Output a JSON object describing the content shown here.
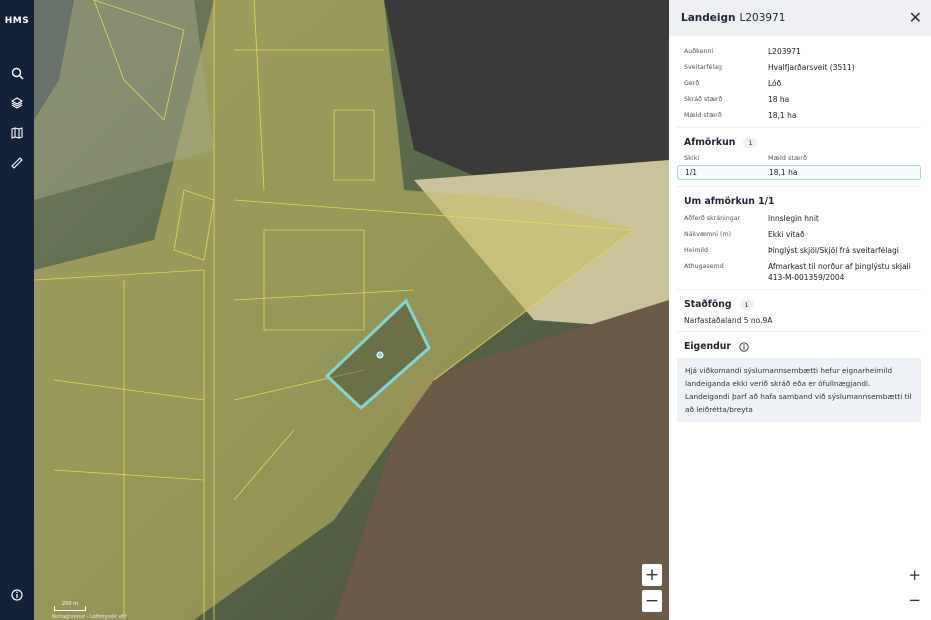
{
  "sidebar": {
    "logo": "HMS",
    "items": [
      {
        "icon": "search-icon"
      },
      {
        "icon": "layers-icon"
      },
      {
        "icon": "map-icon"
      },
      {
        "icon": "ruler-icon"
      }
    ],
    "bottom_icon": "info-icon"
  },
  "map": {
    "scale_label": "200 m",
    "attribution": "Kortagrunnur - Loftmyndir ehf",
    "zoom_in": "+",
    "zoom_out": "−",
    "selected_color": "#7fd6d8",
    "parcel_color": "#e6d45a"
  },
  "panel": {
    "title_prefix": "Landeign",
    "title_id": "L203971",
    "close": "✕",
    "details": [
      {
        "k": "Auðkenni",
        "v": "L203971"
      },
      {
        "k": "Sveitarfélag",
        "v": "Hvalfjarðarsveit (3511)"
      },
      {
        "k": "Gerð",
        "v": "Lóð"
      },
      {
        "k": "Skráð stærð",
        "v": "18 ha"
      },
      {
        "k": "Mæld stærð",
        "v": "18,1 ha"
      }
    ],
    "afmorkun": {
      "title": "Afmörkun",
      "count": "1",
      "col1": "Skiki",
      "col2": "Mæld stærð",
      "rows": [
        {
          "skiki": "1/1",
          "staerd": "18,1 ha"
        }
      ]
    },
    "um": {
      "title": "Um afmörkun 1/1",
      "rows": [
        {
          "k": "Aðferð skráningar",
          "v": "Innslegin hnit"
        },
        {
          "k": "Nákvæmni (m)",
          "v": "Ekki vitað"
        },
        {
          "k": "Heimild",
          "v": "Þinglýst skjöl/Skjöl frá sveitarfélagi"
        },
        {
          "k": "Athugasemd",
          "v": "Afmarkast til norður af þinglýstu skjali 413-M-001359/2004"
        }
      ]
    },
    "stadfong": {
      "title": "Staðföng",
      "count": "1",
      "items": [
        "Narfastaðaland 5 no.9A"
      ]
    },
    "eigendur": {
      "title": "Eigendur",
      "notice": "Hjá viðkomandi sýslumannsembætti hefur eignarheimild landeiganda ekki verið skráð eða er ófullnægjandi. Landeigandi þarf að hafa samband við sýslumannsembætti til að leiðrétta/breyta"
    },
    "zoom_in": "+",
    "zoom_out": "−"
  }
}
